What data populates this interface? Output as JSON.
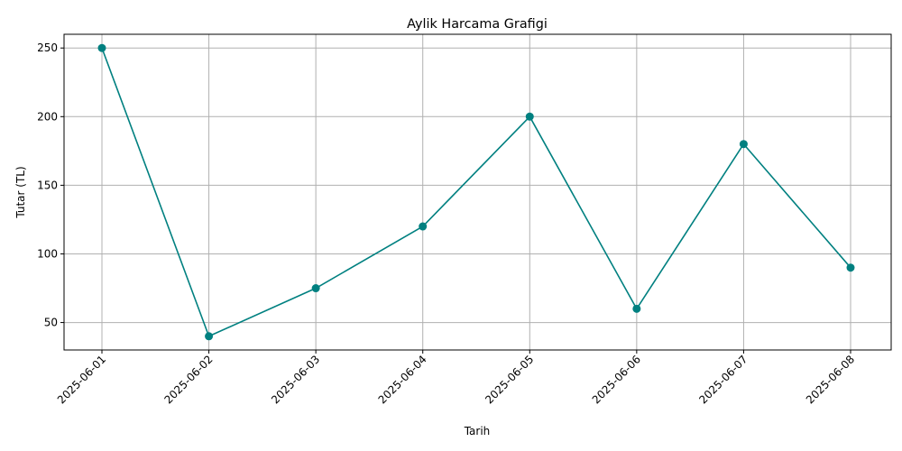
{
  "chart_data": {
    "type": "line",
    "title": "Aylik Harcama Grafigi",
    "xlabel": "Tarih",
    "ylabel": "Tutar (TL)",
    "categories": [
      "2025-06-01",
      "2025-06-02",
      "2025-06-03",
      "2025-06-04",
      "2025-06-05",
      "2025-06-06",
      "2025-06-07",
      "2025-06-08"
    ],
    "series": [
      {
        "values": [
          250,
          40,
          75,
          120,
          200,
          60,
          180,
          90
        ],
        "color": "#008080",
        "marker": "circle"
      }
    ],
    "ylim": [
      30,
      260
    ],
    "yticks": [
      "50",
      "100",
      "150",
      "200",
      "250"
    ],
    "grid": true,
    "xtick_rotation": "45 degrees"
  }
}
